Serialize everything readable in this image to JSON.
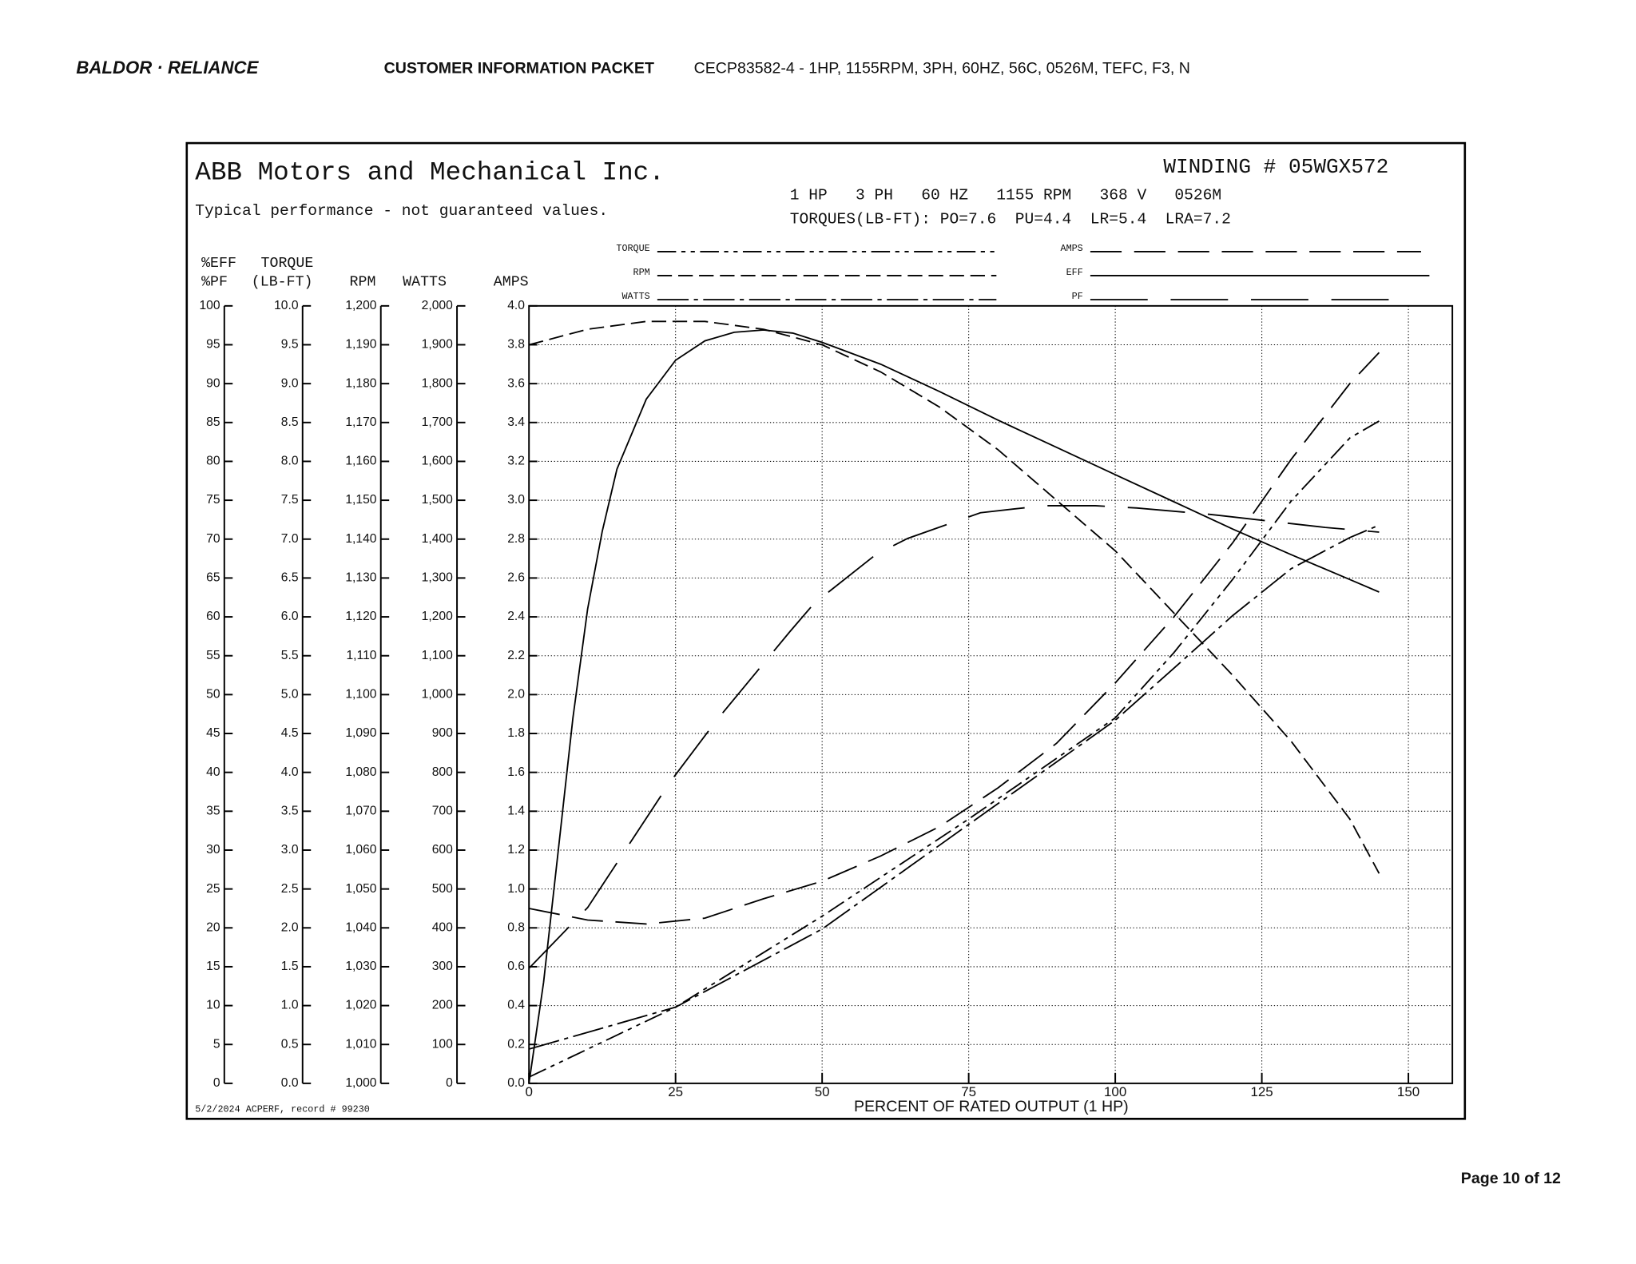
{
  "header": {
    "logo": "BALDOR · RELIANCE",
    "section": "CUSTOMER INFORMATION PACKET",
    "product": "CECP83582-4 - 1HP, 1155RPM, 3PH, 60HZ, 56C, 0526M, TEFC, F3, N"
  },
  "page_number": "Page 10 of 12",
  "chart_data": {
    "type": "line",
    "title": "ABB Motors and Mechanical Inc.",
    "subtitle": "Typical performance - not guaranteed values.",
    "winding": "WINDING # 05WGX572",
    "specs": "1 HP   3 PH   60 HZ   1155 RPM   368 V   0526M",
    "torques": "TORQUES(LB-FT): PO=7.6  PU=4.4  LR=5.4  LRA=7.2",
    "footnote": "5/2/2024 ACPERF, record # 99230",
    "x_label": "PERCENT OF RATED OUTPUT (1 HP)",
    "xlim": [
      0,
      157.5
    ],
    "xticks": [
      0,
      25,
      50,
      75,
      100,
      125,
      150
    ],
    "grid": true,
    "axes": [
      {
        "title": [
          "%EFF",
          "%PF"
        ],
        "ylim": [
          0,
          100
        ],
        "yticks": [
          0,
          5,
          10,
          15,
          20,
          25,
          30,
          35,
          40,
          45,
          50,
          55,
          60,
          65,
          70,
          75,
          80,
          85,
          90,
          95,
          100
        ]
      },
      {
        "title": [
          "TORQUE",
          "(LB-FT)"
        ],
        "ylim": [
          0,
          10
        ],
        "yticks": [
          {
            "value": 0,
            "label": "0.0"
          },
          0.5,
          {
            "value": 1,
            "label": "1.0"
          },
          1.5,
          {
            "value": 2,
            "label": "2.0"
          },
          2.5,
          {
            "value": 3,
            "label": "3.0"
          },
          3.5,
          {
            "value": 4,
            "label": "4.0"
          },
          4.5,
          {
            "value": 5,
            "label": "5.0"
          },
          5.5,
          {
            "value": 6,
            "label": "6.0"
          },
          6.5,
          {
            "value": 7,
            "label": "7.0"
          },
          7.5,
          {
            "value": 8,
            "label": "8.0"
          },
          8.5,
          {
            "value": 9,
            "label": "9.0"
          },
          9.5,
          {
            "value": 10,
            "label": "10.0"
          }
        ]
      },
      {
        "title": [
          "RPM"
        ],
        "ylim": [
          1000,
          1200
        ],
        "yticks": [
          {
            "value": 1000,
            "label": "1,000"
          },
          {
            "value": 1010,
            "label": "1,010"
          },
          {
            "value": 1020,
            "label": "1,020"
          },
          {
            "value": 1030,
            "label": "1,030"
          },
          {
            "value": 1040,
            "label": "1,040"
          },
          {
            "value": 1050,
            "label": "1,050"
          },
          {
            "value": 1060,
            "label": "1,060"
          },
          {
            "value": 1070,
            "label": "1,070"
          },
          {
            "value": 1080,
            "label": "1,080"
          },
          {
            "value": 1090,
            "label": "1,090"
          },
          {
            "value": 1100,
            "label": "1,100"
          },
          {
            "value": 1110,
            "label": "1,110"
          },
          {
            "value": 1120,
            "label": "1,120"
          },
          {
            "value": 1130,
            "label": "1,130"
          },
          {
            "value": 1140,
            "label": "1,140"
          },
          {
            "value": 1150,
            "label": "1,150"
          },
          {
            "value": 1160,
            "label": "1,160"
          },
          {
            "value": 1170,
            "label": "1,170"
          },
          {
            "value": 1180,
            "label": "1,180"
          },
          {
            "value": 1190,
            "label": "1,190"
          },
          {
            "value": 1200,
            "label": "1,200"
          }
        ]
      },
      {
        "title": [
          "WATTS"
        ],
        "ylim": [
          0,
          2000
        ],
        "yticks": [
          0,
          100,
          200,
          300,
          400,
          500,
          600,
          700,
          800,
          900,
          {
            "value": 1000,
            "label": "1,000"
          },
          {
            "value": 1100,
            "label": "1,100"
          },
          {
            "value": 1200,
            "label": "1,200"
          },
          {
            "value": 1300,
            "label": "1,300"
          },
          {
            "value": 1400,
            "label": "1,400"
          },
          {
            "value": 1500,
            "label": "1,500"
          },
          {
            "value": 1600,
            "label": "1,600"
          },
          {
            "value": 1700,
            "label": "1,700"
          },
          {
            "value": 1800,
            "label": "1,800"
          },
          {
            "value": 1900,
            "label": "1,900"
          },
          {
            "value": 2000,
            "label": "2,000"
          }
        ]
      },
      {
        "title": [
          "AMPS"
        ],
        "ylim": [
          0,
          4
        ],
        "yticks": [
          {
            "value": 0,
            "label": "0.0"
          },
          0.2,
          0.4,
          0.6,
          0.8,
          {
            "value": 1,
            "label": "1.0"
          },
          1.2,
          1.4,
          1.6,
          1.8,
          {
            "value": 2,
            "label": "2.0"
          },
          2.2,
          2.4,
          2.6,
          2.8,
          {
            "value": 3,
            "label": "3.0"
          },
          3.2,
          3.4,
          3.6,
          3.8,
          {
            "value": 4,
            "label": "4.0"
          }
        ]
      }
    ],
    "series": [
      {
        "name": "TORQUE",
        "color": "#000000",
        "axis": 1,
        "x": [
          0,
          25,
          50,
          75,
          100,
          110,
          120,
          130,
          140,
          145
        ],
        "values": [
          0.08,
          0.98,
          2.15,
          3.4,
          4.7,
          5.54,
          6.48,
          7.49,
          8.3,
          8.52
        ]
      },
      {
        "name": "RPM",
        "color": "#000000",
        "axis": 2,
        "x": [
          0,
          10,
          20,
          30,
          40,
          50,
          60,
          70,
          80,
          90,
          100,
          110,
          120,
          130,
          140,
          145
        ],
        "values": [
          1190,
          1194,
          1196,
          1196,
          1194,
          1190,
          1183,
          1174,
          1163,
          1150,
          1137,
          1121,
          1105,
          1088,
          1068,
          1054
        ]
      },
      {
        "name": "WATTS",
        "color": "#000000",
        "axis": 3,
        "x": [
          0,
          25,
          50,
          75,
          100,
          110,
          120,
          130,
          140,
          145
        ],
        "values": [
          88,
          196,
          397,
          666,
          934,
          1068,
          1203,
          1324,
          1404,
          1436
        ]
      },
      {
        "name": "AMPS",
        "color": "#000000",
        "axis": 4,
        "x": [
          0,
          10,
          20,
          30,
          40,
          50,
          60,
          70,
          80,
          90,
          100,
          110,
          120,
          130,
          140,
          145
        ],
        "values": [
          0.9,
          0.84,
          0.82,
          0.85,
          0.95,
          1.04,
          1.17,
          1.32,
          1.52,
          1.75,
          2.06,
          2.4,
          2.78,
          3.21,
          3.6,
          3.76
        ]
      },
      {
        "name": "EFF",
        "color": "#000000",
        "axis": 0,
        "x": [
          0,
          2.5,
          5,
          7.5,
          10,
          12.5,
          15,
          20,
          25,
          30,
          35,
          40,
          45,
          50,
          60,
          70,
          80,
          90,
          100,
          110,
          120,
          130,
          140,
          145
        ],
        "values": [
          0,
          13,
          30,
          47,
          61,
          71,
          79,
          88,
          93,
          95.5,
          96.6,
          96.9,
          96.5,
          95.3,
          92.5,
          89,
          85.3,
          81.8,
          78.3,
          74.8,
          71.3,
          68,
          64.8,
          63.2
        ]
      },
      {
        "name": "PF",
        "color": "#000000",
        "axis": 0,
        "x": [
          0,
          10,
          24,
          32,
          44.5,
          48.6,
          59.3,
          64.6,
          77,
          87.7,
          96.6,
          103.7,
          116,
          135.8,
          145
        ],
        "values": [
          14.8,
          22.6,
          38.7,
          46.7,
          58.1,
          61.7,
          68.1,
          70.1,
          73.4,
          74.3,
          74.3,
          74,
          73.2,
          71.5,
          70.9
        ]
      }
    ]
  }
}
